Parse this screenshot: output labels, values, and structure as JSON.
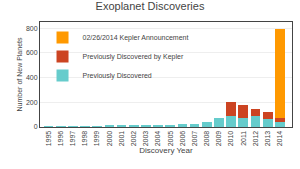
{
  "chart_data": {
    "type": "bar",
    "title": "Exoplanet Discoveries",
    "xlabel": "Discovery Year",
    "ylabel": "Number of New Planets",
    "x": [
      1995,
      1996,
      1997,
      1998,
      1999,
      2000,
      2001,
      2002,
      2003,
      2004,
      2005,
      2006,
      2007,
      2008,
      2009,
      2010,
      2011,
      2012,
      2013,
      2014
    ],
    "series": [
      {
        "name": "Previously Discovered",
        "color": "#66CCCC",
        "values": [
          2,
          2,
          3,
          5,
          4,
          12,
          11,
          10,
          14,
          13,
          18,
          22,
          28,
          42,
          70,
          90,
          70,
          90,
          65,
          40
        ]
      },
      {
        "name": "Previously Discovered by Kepler",
        "color": "#CC4422",
        "values": [
          0,
          0,
          0,
          0,
          0,
          0,
          0,
          0,
          0,
          0,
          0,
          0,
          0,
          0,
          0,
          110,
          110,
          55,
          60,
          35
        ]
      },
      {
        "name": "02/26/2014 Kepler Announcement",
        "color": "#FF9900",
        "values": [
          0,
          0,
          0,
          0,
          0,
          0,
          0,
          0,
          0,
          0,
          0,
          0,
          0,
          0,
          0,
          0,
          0,
          0,
          0,
          715
        ]
      }
    ],
    "stacked": true,
    "xlim": [
      1994.3,
      2015.0
    ],
    "xticks": [
      1995,
      1996,
      1997,
      1998,
      1999,
      2000,
      2001,
      2002,
      2003,
      2004,
      2005,
      2006,
      2007,
      2008,
      2009,
      2010,
      2011,
      2012,
      2013,
      2014
    ],
    "ylim": [
      0,
      850
    ],
    "yticks": [
      0,
      200,
      400,
      600,
      800
    ],
    "grid": "y",
    "legend": "upper left"
  }
}
